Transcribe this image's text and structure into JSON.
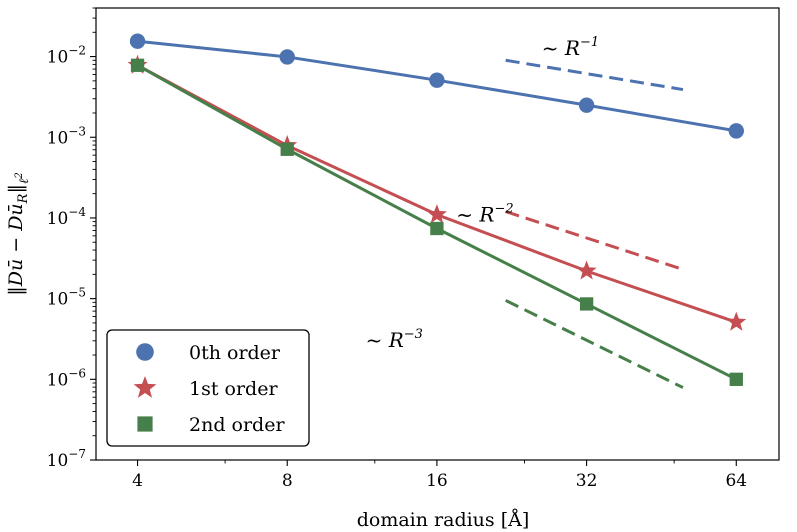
{
  "chart_data": {
    "type": "line",
    "x_scale": "log2",
    "y_scale": "log10",
    "x": [
      4,
      8,
      16,
      32,
      64
    ],
    "x_ticks": [
      "4",
      "8",
      "16",
      "32",
      "64"
    ],
    "xlim": [
      3.3,
      78
    ],
    "ylim": [
      1e-07,
      0.04
    ],
    "y_ticks": [
      {
        "value": 1e-07,
        "base": "10",
        "exp": "−7"
      },
      {
        "value": 1e-06,
        "base": "10",
        "exp": "−6"
      },
      {
        "value": 1e-05,
        "base": "10",
        "exp": "−5"
      },
      {
        "value": 0.0001,
        "base": "10",
        "exp": "−4"
      },
      {
        "value": 0.001,
        "base": "10",
        "exp": "−3"
      },
      {
        "value": 0.01,
        "base": "10",
        "exp": "−2"
      }
    ],
    "xlabel": "domain radius [Å]",
    "ylabel": "‖Dū − Dū_R‖ℓ²",
    "series": [
      {
        "name": "0th order",
        "marker": "circle",
        "color": "#4c72b0",
        "values": [
          0.0155,
          0.0099,
          0.0051,
          0.0025,
          0.0012
        ]
      },
      {
        "name": "1st order",
        "marker": "star",
        "color": "#c44e52",
        "values": [
          0.0078,
          0.00079,
          0.00011,
          2.2e-05,
          5.1e-06
        ]
      },
      {
        "name": "2nd order",
        "marker": "square",
        "color": "#467f4a",
        "values": [
          0.0078,
          0.00071,
          7.4e-05,
          8.6e-06,
          1e-06
        ]
      }
    ],
    "reference_lines": [
      {
        "label_base": "~ R",
        "label_exp": "−1",
        "color": "#4c72b0",
        "x": [
          22,
          50
        ],
        "y": [
          0.009,
          0.0039
        ],
        "label_x": 26,
        "label_y": 0.0105
      },
      {
        "label_base": "~ R",
        "label_exp": "−2",
        "color": "#c44e52",
        "x": [
          22,
          50
        ],
        "y": [
          0.00012,
          2.3e-05
        ],
        "label_x": 17.5,
        "label_y": 9e-05
      },
      {
        "label_base": "~ R",
        "label_exp": "−3",
        "color": "#467f4a",
        "x": [
          22,
          50
        ],
        "y": [
          9.5e-06,
          7.9e-07
        ],
        "label_x": 11.5,
        "label_y": 2.5e-06
      }
    ],
    "legend": {
      "position": "lower-left",
      "entries": [
        "0th order",
        "1st order",
        "2nd order"
      ]
    },
    "grid": false
  }
}
